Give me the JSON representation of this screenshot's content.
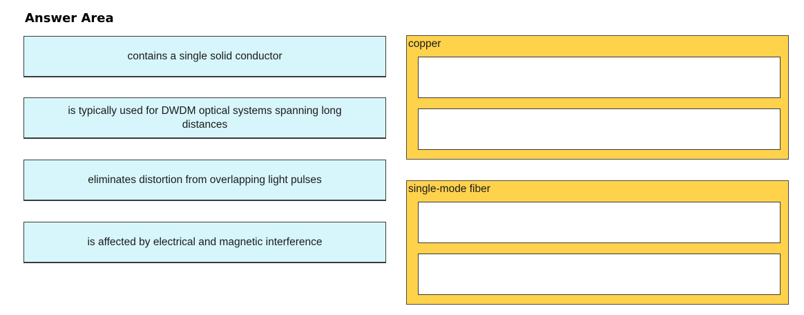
{
  "header": {
    "title": "Answer Area"
  },
  "answers": [
    {
      "label": "contains a single solid conductor"
    },
    {
      "label": "is typically used for DWDM optical systems spanning long distances"
    },
    {
      "label": "eliminates distortion from overlapping light pulses"
    },
    {
      "label": "is affected by electrical and magnetic interference"
    }
  ],
  "categories": [
    {
      "label": "copper",
      "slots": [
        "",
        ""
      ]
    },
    {
      "label": "single-mode fiber",
      "slots": [
        "",
        ""
      ]
    }
  ],
  "colors": {
    "answer_fill": "#d7f6fb",
    "category_fill": "#ffd24c",
    "slot_fill": "#ffffff"
  }
}
